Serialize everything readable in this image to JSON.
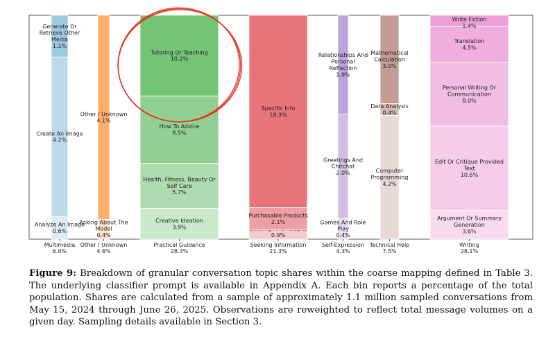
{
  "chart_data": {
    "type": "bar",
    "stacked": true,
    "orientation": "vertical",
    "ylabel": "",
    "xlabel": "",
    "groups": [
      {
        "name": "Multimedia",
        "total": "6.0%",
        "value": 6.0,
        "color": "#9ecae1",
        "segments": [
          {
            "label": "Analyze An Image",
            "pct": "0.6%",
            "value": 0.6
          },
          {
            "label": "Create An Image",
            "pct": "4.2%",
            "value": 4.2
          },
          {
            "label": "Generate Or Retrieve Other Media",
            "pct": "1.1%",
            "value": 1.1
          }
        ]
      },
      {
        "name": "Other / Unknown",
        "total": "4.6%",
        "value": 4.6,
        "color": "#fdae6b",
        "segments": [
          {
            "label": "Asking About The Model",
            "pct": "0.4%",
            "value": 0.4
          },
          {
            "label": "Other / Unknown",
            "pct": "4.1%",
            "value": 4.1
          }
        ]
      },
      {
        "name": "Practical Guidance",
        "total": "28.3%",
        "value": 28.3,
        "color": "#74c476",
        "segments": [
          {
            "label": "Creative Ideation",
            "pct": "3.9%",
            "value": 3.9
          },
          {
            "label": "Health, Fitness, Beauty Or Self Care",
            "pct": "5.7%",
            "value": 5.7
          },
          {
            "label": "How To Advice",
            "pct": "8.5%",
            "value": 8.5
          },
          {
            "label": "Tutoring Or Teaching",
            "pct": "10.2%",
            "value": 10.2
          }
        ]
      },
      {
        "name": "Seeking Information",
        "total": "21.3%",
        "value": 21.3,
        "color": "#e7747a",
        "segments": [
          {
            "label": "Cooking And Recipes",
            "pct": "0.9%",
            "value": 0.9
          },
          {
            "label": "Purchasable Products",
            "pct": "2.1%",
            "value": 2.1
          },
          {
            "label": "Specific Info",
            "pct": "18.3%",
            "value": 18.3
          }
        ]
      },
      {
        "name": "Self-Expression",
        "total": "4.3%",
        "value": 4.3,
        "color": "#bca4d8",
        "segments": [
          {
            "label": "Games And Role Play",
            "pct": "0.4%",
            "value": 0.4
          },
          {
            "label": "Greetings And Chitchat",
            "pct": "2.0%",
            "value": 2.0
          },
          {
            "label": "Relationships And Personal Reflection",
            "pct": "1.9%",
            "value": 1.9
          }
        ]
      },
      {
        "name": "Technical Help",
        "total": "7.5%",
        "value": 7.5,
        "color": "#c49c94",
        "segments": [
          {
            "label": "Computer Programming",
            "pct": "4.2%",
            "value": 4.2
          },
          {
            "label": "Data Analysis",
            "pct": "0.4%",
            "value": 0.4
          },
          {
            "label": "Mathematical Calculation",
            "pct": "3.0%",
            "value": 3.0
          }
        ]
      },
      {
        "name": "Writing",
        "total": "28.1%",
        "value": 28.1,
        "color": "#ec9fd6",
        "segments": [
          {
            "label": "Argument Or Summary Generation",
            "pct": "3.6%",
            "value": 3.6
          },
          {
            "label": "Edit Or Critique Provided Text",
            "pct": "10.6%",
            "value": 10.6
          },
          {
            "label": "Personal Writing Or Communication",
            "pct": "8.0%",
            "value": 8.0
          },
          {
            "label": "Translation",
            "pct": "4.5%",
            "value": 4.5
          },
          {
            "label": "Write Fiction",
            "pct": "1.4%",
            "value": 1.4
          }
        ]
      }
    ],
    "annotations": [
      {
        "type": "hand-drawn-circle",
        "color": "#e0301e",
        "target": "Tutoring Or Teaching"
      }
    ]
  },
  "caption": {
    "label": "Figure 9:",
    "text": "Breakdown of granular conversation topic shares within the coarse mapping defined in Table 3. The underlying classifier prompt is available in Appendix A. Each bin reports a percentage of the total population. Shares are calculated from a sample of approximately 1.1 million sampled conversations from May 15, 2024 through June 26, 2025. Observations are reweighted to reflect total message volumes on a given day. Sampling details available in Section 3."
  }
}
